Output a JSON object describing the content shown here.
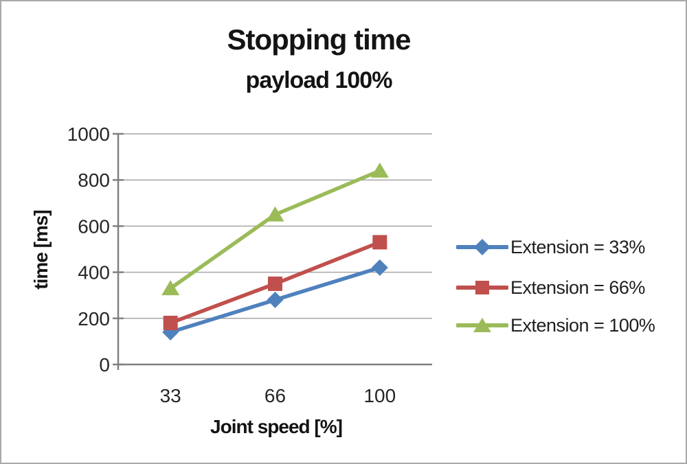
{
  "frame": {
    "background_color": "#ffffff",
    "border_color": "#a9a9a9"
  },
  "chart_data": {
    "type": "line",
    "title": "Stopping time",
    "subtitle": "payload 100%",
    "xlabel": "Joint speed [%]",
    "ylabel": "time [ms]",
    "categories": [
      "33",
      "66",
      "100"
    ],
    "series": [
      {
        "name": "Extension = 33%",
        "marker": "diamond",
        "color": "#4F81BD",
        "values": [
          140,
          280,
          420
        ]
      },
      {
        "name": "Extension = 66%",
        "marker": "square",
        "color": "#C0504D",
        "values": [
          180,
          350,
          530
        ]
      },
      {
        "name": "Extension = 100%",
        "marker": "triangle",
        "color": "#9BBB59",
        "values": [
          330,
          650,
          840
        ]
      }
    ],
    "ylim": [
      0,
      1000
    ],
    "yticks": [
      0,
      200,
      400,
      600,
      800,
      1000
    ],
    "grid": "horizontal",
    "legend_position": "right",
    "axis_color": "#808080",
    "gridline_color": "#a6a6a6",
    "tick_label_color": "#262626"
  }
}
